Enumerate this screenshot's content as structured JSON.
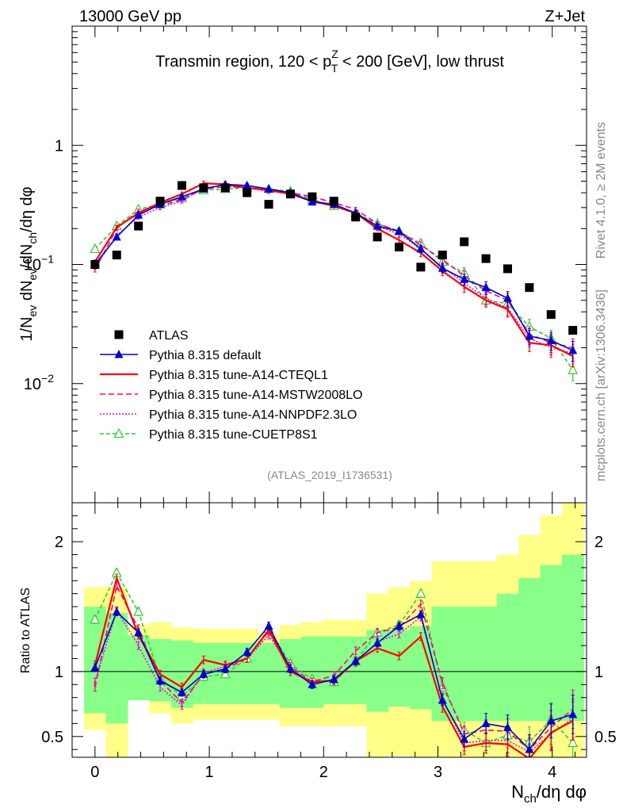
{
  "header": {
    "left": "13000 GeV pp",
    "right": "Z+Jet"
  },
  "side_labels": {
    "rivet": "Rivet 4.1.0, ≥ 2M events",
    "mcplots": "mcplots.cern.ch [arXiv:1306.3436]"
  },
  "colors": {
    "atlas": "#000000",
    "default": "#0000cc",
    "cteql1": "#ff0000",
    "mstw": "#ff0080",
    "nnpdf": "#ee00ee",
    "cuetp": "#33cc33",
    "band_inner": "#88ff88",
    "band_outer": "#ffff88"
  },
  "chart_data": [
    {
      "type": "line",
      "scale": "log",
      "title": "Transmin region, 120 < p_T^Z < 200 [GeV], low thrust",
      "title_parts": {
        "a": "Transmin region, 120 < p",
        "sup": "Z",
        "sub": "T",
        "b": " < 200 [GeV], low thrust"
      },
      "ylabel": "1/N_ev dN_ev/dN_ch/dη dφ",
      "ylabel_parts": {
        "p1": "1/N",
        "s1": "ev",
        "p2": " dN",
        "s2": "ev",
        "p3": "/dN",
        "s3": "ch",
        "p4": "/dη dφ"
      },
      "xlim": [
        -0.2,
        4.3
      ],
      "ylim": [
        0.001,
        10
      ],
      "y_ticks": [
        {
          "value": 1,
          "label": "1"
        },
        {
          "value": 0.1,
          "base": "10",
          "exp": "−1"
        },
        {
          "value": 0.01,
          "base": "10",
          "exp": "−2"
        }
      ],
      "reference_label": "(ATLAS_2019_I1736531)",
      "x": [
        0.0,
        0.19,
        0.38,
        0.57,
        0.76,
        0.95,
        1.14,
        1.33,
        1.52,
        1.71,
        1.9,
        2.09,
        2.28,
        2.47,
        2.66,
        2.85,
        3.04,
        3.23,
        3.42,
        3.61,
        3.8,
        3.99,
        4.18
      ],
      "series": [
        {
          "name": "ATLAS",
          "key": "atlas",
          "marker": "square",
          "values": [
            0.1,
            0.12,
            0.21,
            0.34,
            0.46,
            0.44,
            0.44,
            0.4,
            0.32,
            0.39,
            0.37,
            0.34,
            0.25,
            0.17,
            0.14,
            0.095,
            0.12,
            0.155,
            0.112,
            0.092,
            0.064,
            0.038,
            0.028
          ]
        },
        {
          "name": "Pythia 8.315 default",
          "key": "default",
          "marker": "triangle",
          "values": [
            0.1,
            0.17,
            0.26,
            0.32,
            0.37,
            0.43,
            0.47,
            0.46,
            0.43,
            0.4,
            0.335,
            0.32,
            0.27,
            0.21,
            0.19,
            0.135,
            0.093,
            0.075,
            0.064,
            0.052,
            0.025,
            0.023,
            0.019
          ]
        },
        {
          "name": "Pythia 8.315 tune-A14-CTEQL1",
          "key": "cteql1",
          "marker": "none",
          "dash": "",
          "values": [
            0.105,
            0.205,
            0.27,
            0.33,
            0.39,
            0.48,
            0.47,
            0.44,
            0.42,
            0.39,
            0.34,
            0.31,
            0.27,
            0.2,
            0.16,
            0.125,
            0.088,
            0.065,
            0.05,
            0.042,
            0.022,
            0.021,
            0.017
          ]
        },
        {
          "name": "Pythia 8.315 tune-A14-MSTW2008LO",
          "key": "mstw",
          "marker": "none",
          "dash": "7,4",
          "values": [
            0.09,
            0.2,
            0.28,
            0.31,
            0.35,
            0.43,
            0.45,
            0.44,
            0.42,
            0.4,
            0.37,
            0.33,
            0.29,
            0.22,
            0.19,
            0.145,
            0.11,
            0.08,
            0.06,
            0.05,
            0.026,
            0.022,
            0.02
          ]
        },
        {
          "name": "Pythia 8.315 tune-A14-NNPDF2.3LO",
          "key": "nnpdf",
          "marker": "none",
          "dash": "2,2",
          "values": [
            0.095,
            0.175,
            0.25,
            0.3,
            0.34,
            0.44,
            0.46,
            0.44,
            0.41,
            0.4,
            0.34,
            0.32,
            0.27,
            0.21,
            0.18,
            0.135,
            0.095,
            0.07,
            0.052,
            0.043,
            0.024,
            0.02,
            0.018
          ]
        },
        {
          "name": "Pythia 8.315 tune-CUETP8S1",
          "key": "cuetp",
          "marker": "open-triangle",
          "dash": "5,3",
          "values": [
            0.135,
            0.21,
            0.29,
            0.32,
            0.36,
            0.42,
            0.43,
            0.44,
            0.43,
            0.41,
            0.35,
            0.31,
            0.27,
            0.22,
            0.19,
            0.15,
            0.105,
            0.085,
            0.05,
            0.047,
            0.03,
            0.024,
            0.013
          ]
        }
      ]
    },
    {
      "type": "line",
      "title": "",
      "ylabel": "Ratio to ATLAS",
      "xlabel": "N_ch/dη dφ",
      "xlabel_parts": {
        "p1": "N",
        "s1": "ch",
        "p2": "/dη dφ"
      },
      "xlim": [
        -0.2,
        4.3
      ],
      "ylim": [
        0.34,
        2.3
      ],
      "x_ticks": [
        0,
        1,
        2,
        3,
        4
      ],
      "y_ticks": [
        0.5,
        1,
        2
      ],
      "y_tick_labels": [
        "0.5",
        "1",
        "2"
      ],
      "x": [
        0.0,
        0.19,
        0.38,
        0.57,
        0.76,
        0.95,
        1.14,
        1.33,
        1.52,
        1.71,
        1.9,
        2.09,
        2.28,
        2.47,
        2.66,
        2.85,
        3.04,
        3.23,
        3.42,
        3.61,
        3.8,
        3.99,
        4.18
      ],
      "bands": {
        "inner_low": [
          0.68,
          0.6,
          0.78,
          0.77,
          0.72,
          0.75,
          0.75,
          0.75,
          0.75,
          0.72,
          0.72,
          0.75,
          0.75,
          0.69,
          0.73,
          0.71,
          0.62,
          0.62,
          0.62,
          0.62,
          0.62,
          0.62,
          0.62
        ],
        "inner_high": [
          1.5,
          1.45,
          1.28,
          1.25,
          1.24,
          1.22,
          1.22,
          1.22,
          1.22,
          1.25,
          1.27,
          1.27,
          1.27,
          1.32,
          1.32,
          1.35,
          1.5,
          1.5,
          1.5,
          1.6,
          1.72,
          1.82,
          1.9
        ],
        "outer_low": [
          0.55,
          0.3,
          0.8,
          0.68,
          0.6,
          0.63,
          0.63,
          0.63,
          0.63,
          0.58,
          0.58,
          0.58,
          0.58,
          0.3,
          0.35,
          0.3,
          0.3,
          0.3,
          0.3,
          0.3,
          0.3,
          0.3,
          0.3
        ],
        "outer_high": [
          1.65,
          1.65,
          1.36,
          1.38,
          1.34,
          1.33,
          1.33,
          1.33,
          1.3,
          1.36,
          1.38,
          1.4,
          1.4,
          1.6,
          1.65,
          1.7,
          1.85,
          1.85,
          1.85,
          1.9,
          2.05,
          2.2,
          2.3
        ]
      },
      "series": [
        {
          "name": "Pythia 8.315 default",
          "key": "default",
          "marker": "triangle",
          "values": [
            1.03,
            1.46,
            1.3,
            0.93,
            0.84,
            0.98,
            1.02,
            1.15,
            1.35,
            1.02,
            0.9,
            0.94,
            1.08,
            1.22,
            1.35,
            1.44,
            0.78,
            0.48,
            0.6,
            0.57,
            0.4,
            0.62,
            0.67
          ]
        },
        {
          "name": "Pythia 8.315 tune-A14-CTEQL1",
          "key": "cteql1",
          "marker": "none",
          "dash": "",
          "values": [
            1.05,
            1.72,
            1.28,
            0.98,
            0.88,
            1.09,
            1.05,
            1.1,
            1.32,
            1.0,
            0.92,
            0.93,
            1.08,
            1.18,
            1.12,
            1.27,
            0.73,
            0.42,
            0.45,
            0.44,
            0.33,
            0.53,
            0.62
          ]
        },
        {
          "name": "Pythia 8.315 tune-A14-MSTW2008LO",
          "key": "mstw",
          "marker": "none",
          "dash": "7,4",
          "values": [
            0.88,
            1.66,
            1.33,
            0.93,
            0.76,
            0.98,
            1.02,
            1.1,
            1.31,
            1.04,
            0.92,
            0.97,
            1.16,
            1.3,
            1.34,
            1.52,
            0.91,
            0.52,
            0.55,
            0.54,
            0.4,
            0.57,
            0.71
          ]
        },
        {
          "name": "Pythia 8.315 tune-A14-NNPDF2.3LO",
          "key": "nnpdf",
          "marker": "none",
          "dash": "2,2",
          "values": [
            0.92,
            1.47,
            1.2,
            0.88,
            0.74,
            0.99,
            1.04,
            1.1,
            1.28,
            1.03,
            0.9,
            0.94,
            1.07,
            1.23,
            1.29,
            1.42,
            0.79,
            0.45,
            0.47,
            0.47,
            0.38,
            0.52,
            0.64
          ]
        },
        {
          "name": "Pythia 8.315 tune-CUETP8S1",
          "key": "cuetp",
          "marker": "open-triangle",
          "dash": "5,3",
          "values": [
            1.4,
            1.76,
            1.46,
            0.95,
            0.81,
            0.96,
            0.98,
            1.1,
            1.33,
            1.06,
            0.94,
            0.92,
            1.08,
            1.3,
            1.36,
            1.6,
            0.88,
            0.55,
            0.45,
            0.51,
            0.46,
            0.63,
            0.45
          ]
        }
      ]
    }
  ]
}
